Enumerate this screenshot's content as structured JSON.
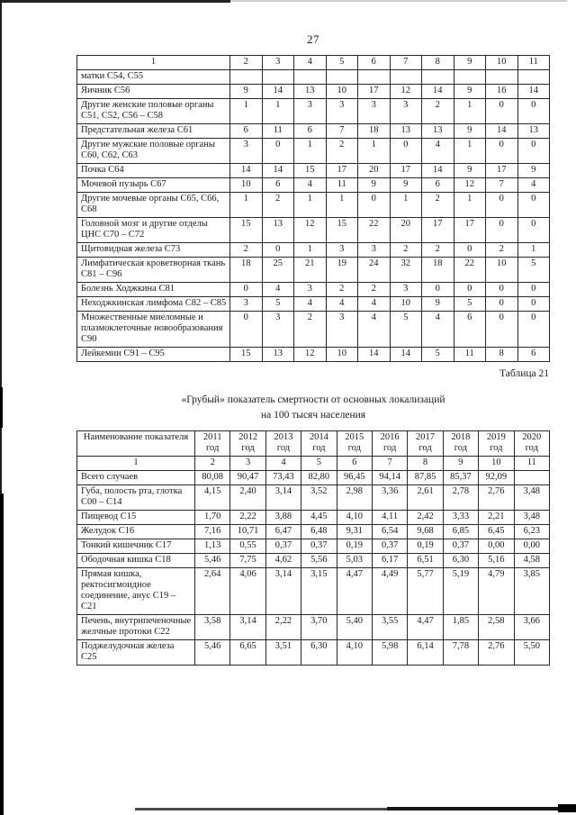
{
  "page": {
    "number": "27"
  },
  "caption": "Таблица 21",
  "title": {
    "line1": "«Грубый» показатель смертности от основных локализаций",
    "line2": "на 100 тысяч населения"
  },
  "table1": {
    "column_numbers": [
      "1",
      "2",
      "3",
      "4",
      "5",
      "6",
      "7",
      "8",
      "9",
      "10",
      "11"
    ],
    "rows": [
      {
        "label": "матки С54, С55",
        "values": [
          "",
          "",
          "",
          "",
          "",
          "",
          "",
          "",
          "",
          ""
        ]
      },
      {
        "label": "Яичник С56",
        "values": [
          "9",
          "14",
          "13",
          "10",
          "17",
          "12",
          "14",
          "9",
          "16",
          "14"
        ]
      },
      {
        "label": "Другие женские половые органы С51, С52, С56 – С58",
        "values": [
          "1",
          "1",
          "3",
          "3",
          "3",
          "3",
          "2",
          "1",
          "0",
          "0"
        ]
      },
      {
        "label": "Предстательная железа С61",
        "values": [
          "6",
          "11",
          "6",
          "7",
          "18",
          "13",
          "13",
          "9",
          "14",
          "13"
        ]
      },
      {
        "label": "Другие мужские половые органы С60, С62, С63",
        "values": [
          "3",
          "0",
          "1",
          "2",
          "1",
          "0",
          "4",
          "1",
          "0",
          "0"
        ]
      },
      {
        "label": "Почка С64",
        "values": [
          "14",
          "14",
          "15",
          "17",
          "20",
          "17",
          "14",
          "9",
          "17",
          "9"
        ]
      },
      {
        "label": "Мочевой пузырь С67",
        "values": [
          "10",
          "6",
          "4",
          "11",
          "9",
          "9",
          "6",
          "12",
          "7",
          "4"
        ]
      },
      {
        "label": "Другие мочевые органы С65, С66, С68",
        "values": [
          "1",
          "2",
          "1",
          "1",
          "0",
          "1",
          "2",
          "1",
          "0",
          "0"
        ]
      },
      {
        "label": "Головной мозг и другие отделы ЦНС С70 – С72",
        "values": [
          "15",
          "13",
          "12",
          "15",
          "22",
          "20",
          "17",
          "17",
          "0",
          "0"
        ]
      },
      {
        "label": "Щитовидная железа С73",
        "values": [
          "2",
          "0",
          "1",
          "3",
          "3",
          "2",
          "2",
          "0",
          "2",
          "1"
        ]
      },
      {
        "label": "Лимфатическая кроветворная ткань С81 – С96",
        "values": [
          "18",
          "25",
          "21",
          "19",
          "24",
          "32",
          "18",
          "22",
          "10",
          "5"
        ]
      },
      {
        "label": "Болезнь Ходжкина С81",
        "values": [
          "0",
          "4",
          "3",
          "2",
          "2",
          "3",
          "0",
          "0",
          "0",
          "0"
        ]
      },
      {
        "label": "Неходжкинская лимфома С82 – С85",
        "values": [
          "3",
          "5",
          "4",
          "4",
          "4",
          "10",
          "9",
          "5",
          "0",
          "0"
        ]
      },
      {
        "label": "Множественные миеломные и плазмоклеточные новообразования С90",
        "values": [
          "0",
          "3",
          "2",
          "3",
          "4",
          "5",
          "4",
          "6",
          "0",
          "0"
        ]
      },
      {
        "label": "Лейкемии С91 – С95",
        "values": [
          "15",
          "13",
          "12",
          "10",
          "14",
          "14",
          "5",
          "11",
          "8",
          "6"
        ]
      }
    ]
  },
  "table2": {
    "name_header": "Наименование показателя",
    "year_headers": [
      "2011 год",
      "2012 год",
      "2013 год",
      "2014 год",
      "2015 год",
      "2016 год",
      "2017 год",
      "2018 год",
      "2019 год",
      "2020 год"
    ],
    "column_numbers": [
      "1",
      "2",
      "3",
      "4",
      "5",
      "6",
      "7",
      "8",
      "9",
      "10",
      "11"
    ],
    "rows": [
      {
        "label": "Всего случаев",
        "values": [
          "80,08",
          "90,47",
          "73,43",
          "82,80",
          "96,45",
          "94,14",
          "87,85",
          "85,37",
          "92,09",
          ""
        ]
      },
      {
        "label": "Губа, полость рта, глотка С00 – С14",
        "values": [
          "4,15",
          "2,40",
          "3,14",
          "3,52",
          "2,98",
          "3,36",
          "2,61",
          "2,78",
          "2,76",
          "3,48"
        ]
      },
      {
        "label": "Пищевод С15",
        "values": [
          "1,70",
          "2,22",
          "3,88",
          "4,45",
          "4,10",
          "4,11",
          "2,42",
          "3,33",
          "2,21",
          "3,48"
        ]
      },
      {
        "label": "Желудок С16",
        "values": [
          "7,16",
          "10,71",
          "6,47",
          "6,48",
          "9,31",
          "6,54",
          "9,68",
          "6,85",
          "6,45",
          "6,23"
        ]
      },
      {
        "label": "Тонкий кишечник С17",
        "values": [
          "1,13",
          "0,55",
          "0,37",
          "0,37",
          "0,19",
          "0,37",
          "0,19",
          "0,37",
          "0,00",
          "0,00"
        ]
      },
      {
        "label": "Ободочная кишка С18",
        "values": [
          "5,46",
          "7,75",
          "4,62",
          "5,56",
          "5,03",
          "6,17",
          "6,51",
          "6,30",
          "5,16",
          "4,58"
        ]
      },
      {
        "label": "Прямая кишка, ректосигмоидное соединение, анус С19 – С21",
        "values": [
          "2,64",
          "4,06",
          "3,14",
          "3,15",
          "4,47",
          "4,49",
          "5,77",
          "5,19",
          "4,79",
          "3,85"
        ]
      },
      {
        "label": "Печень, внутрипеченочные желчные протоки С22",
        "values": [
          "3,58",
          "3,14",
          "2,22",
          "3,70",
          "5,40",
          "3,55",
          "4,47",
          "1,85",
          "2,58",
          "3,66"
        ]
      },
      {
        "label": "Поджелудочная железа С25",
        "values": [
          "5,46",
          "6,65",
          "3,51",
          "6,30",
          "4,10",
          "5,98",
          "6,14",
          "7,78",
          "2,76",
          "5,50"
        ]
      }
    ]
  }
}
